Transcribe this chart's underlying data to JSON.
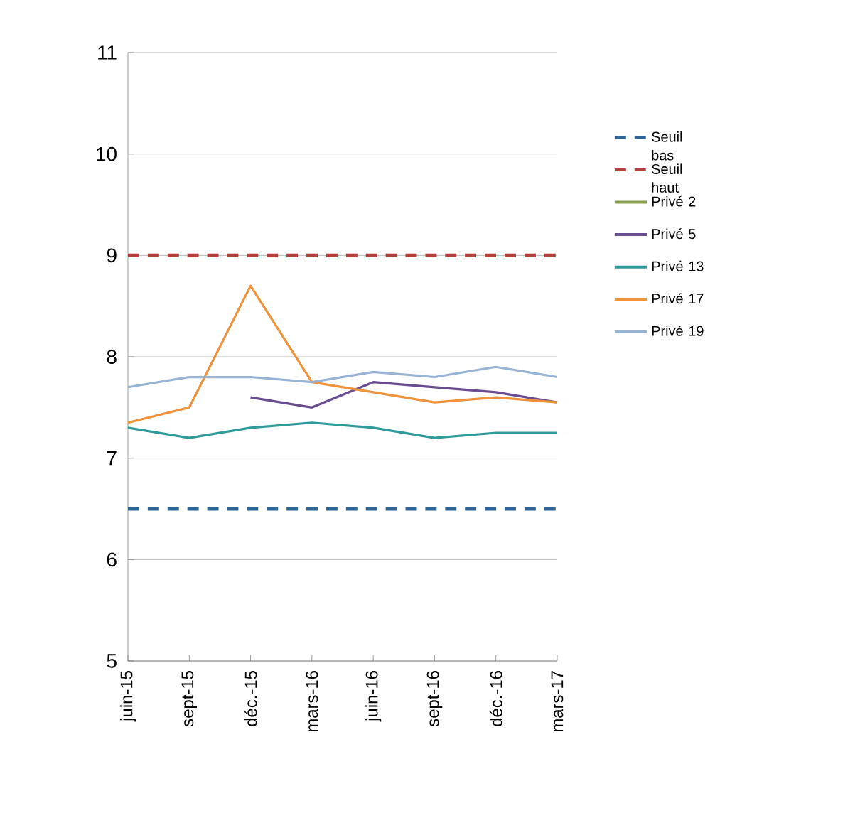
{
  "chart_data": {
    "type": "line",
    "categories": [
      "juin-15",
      "sept-15",
      "déc.-15",
      "mars-16",
      "juin-16",
      "sept-16",
      "déc.-16",
      "mars-17"
    ],
    "series": [
      {
        "name": "Seuil bas",
        "color": "#2f6596",
        "line_style": "dashed",
        "values": [
          6.5,
          6.5,
          6.5,
          6.5,
          6.5,
          6.5,
          6.5,
          6.5
        ]
      },
      {
        "name": "Seuil haut",
        "color": "#b0413e",
        "line_style": "dashed",
        "values": [
          9,
          9,
          9,
          9,
          9,
          9,
          9,
          9
        ]
      },
      {
        "name": "Privé 2",
        "color": "#8aa050",
        "values": [
          null,
          null,
          null,
          null,
          null,
          null,
          null,
          null
        ]
      },
      {
        "name": "Privé 5",
        "color": "#6a4c93",
        "values": [
          null,
          null,
          7.6,
          7.5,
          7.75,
          7.7,
          7.65,
          7.55
        ]
      },
      {
        "name": "Privé 13",
        "color": "#2e9b9b",
        "values": [
          7.3,
          7.2,
          7.3,
          7.35,
          7.3,
          7.2,
          7.25,
          7.25
        ]
      },
      {
        "name": "Privé 17",
        "color": "#f0923a",
        "values": [
          7.35,
          7.5,
          8.7,
          7.75,
          7.65,
          7.55,
          7.6,
          7.55
        ]
      },
      {
        "name": "Privé 19",
        "color": "#98b4d4",
        "values": [
          7.7,
          7.8,
          7.8,
          7.75,
          7.85,
          7.8,
          7.9,
          7.8
        ]
      }
    ],
    "ylim": [
      5,
      11
    ],
    "yticks": [
      5,
      6,
      7,
      8,
      9,
      10,
      11
    ],
    "grid": "y",
    "legend": "right"
  }
}
